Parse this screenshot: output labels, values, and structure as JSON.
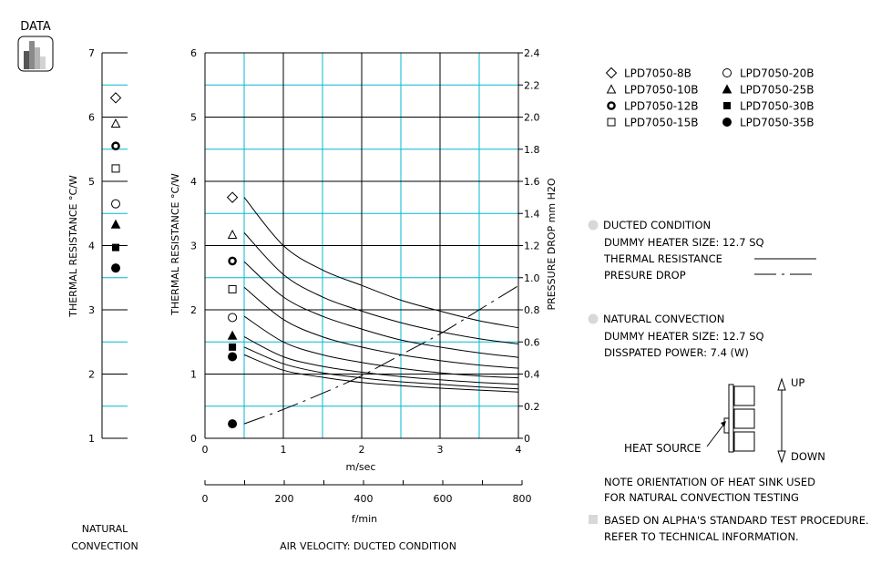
{
  "badge": {
    "label": "DATA"
  },
  "colors": {
    "grid_cyan": "#00b8d4",
    "ink": "#000000",
    "bullet_gray": "#d8d8d8",
    "badge_gray": "#a8a8a8"
  },
  "legend": {
    "items": [
      {
        "label": "LPD7050-8B",
        "marker": "diamond-open"
      },
      {
        "label": "LPD7050-10B",
        "marker": "triangle-open"
      },
      {
        "label": "LPD7050-12B",
        "marker": "circle-bold-ring"
      },
      {
        "label": "LPD7050-15B",
        "marker": "square-open"
      },
      {
        "label": "LPD7050-20B",
        "marker": "circle-open"
      },
      {
        "label": "LPD7050-25B",
        "marker": "triangle-filled"
      },
      {
        "label": "LPD7050-30B",
        "marker": "square-filled"
      },
      {
        "label": "LPD7050-35B",
        "marker": "circle-filled"
      }
    ]
  },
  "notes": {
    "ducted_title": "DUCTED CONDITION",
    "ducted_heater": "DUMMY HEATER SIZE: 12.7 SQ",
    "ducted_thermal": "THERMAL RESISTANCE",
    "ducted_pressure": "PRESURE DROP",
    "natural_title": "NATURAL CONVECTION",
    "natural_heater": "DUMMY HEATER SIZE: 12.7 SQ",
    "natural_power": "DISSPATED POWER:  7.4 (W)",
    "up": "UP",
    "down": "DOWN",
    "heat_source": "HEAT SOURCE",
    "orientation_1": "NOTE ORIENTATION OF HEAT SINK USED",
    "orientation_2": "FOR NATURAL CONVECTION TESTING",
    "alpha_1": "BASED ON ALPHA'S STANDARD TEST PROCEDURE.",
    "alpha_2": "REFER TO TECHNICAL INFORMATION."
  },
  "chart_data": [
    {
      "type": "scatter",
      "caption_1": "NATURAL",
      "caption_2": "CONVECTION",
      "ylabel": "THERMAL  RESISTANCE   °C/W",
      "ylim": [
        1,
        7
      ],
      "yticks": [
        "1",
        "2",
        "3",
        "4",
        "5",
        "6",
        "7"
      ],
      "grid": true,
      "series": [
        {
          "name": "LPD7050-8B",
          "marker": "diamond-open",
          "value": 6.3
        },
        {
          "name": "LPD7050-10B",
          "marker": "triangle-open",
          "value": 5.9
        },
        {
          "name": "LPD7050-12B",
          "marker": "circle-bold-ring",
          "value": 5.55
        },
        {
          "name": "LPD7050-15B",
          "marker": "square-open",
          "value": 5.2
        },
        {
          "name": "LPD7050-20B",
          "marker": "circle-open",
          "value": 4.65
        },
        {
          "name": "LPD7050-25B",
          "marker": "triangle-filled",
          "value": 4.33
        },
        {
          "name": "LPD7050-30B",
          "marker": "square-filled",
          "value": 3.97
        },
        {
          "name": "LPD7050-35B",
          "marker": "circle-filled",
          "value": 3.65
        }
      ]
    },
    {
      "type": "line",
      "caption": "AIR VELOCITY:  DUCTED CONDITION",
      "xlabel": "m/sec",
      "xlabel2": "f/min",
      "ylabel": "THERMAL  RESISTANCE   °C/W",
      "ylabel2": "PRESSURE  DROP    mm H2O",
      "xlim": [
        0,
        4
      ],
      "ylim": [
        0,
        6
      ],
      "y2lim": [
        0,
        2.4
      ],
      "xticks": [
        "0",
        "1",
        "2",
        "3",
        "4"
      ],
      "x2ticks": [
        "0",
        "200",
        "400",
        "600",
        "800"
      ],
      "yticks": [
        "0",
        "1",
        "2",
        "3",
        "4",
        "5",
        "6"
      ],
      "y2ticks": [
        "0",
        "0.2",
        "0.4",
        "0.6",
        "0.8",
        "1.0",
        "1.2",
        "1.4",
        "1.6",
        "1.8",
        "2.0",
        "2.2",
        "2.4"
      ],
      "grid": true,
      "marker_x": 0.35,
      "series": [
        {
          "name": "LPD7050-8B",
          "marker": "diamond-open",
          "marker_y": 3.75,
          "x": [
            0.5,
            1.0,
            1.5,
            2.0,
            2.5,
            3.0,
            3.5,
            4.0
          ],
          "y": [
            3.75,
            3.0,
            2.62,
            2.38,
            2.15,
            1.98,
            1.83,
            1.72
          ]
        },
        {
          "name": "LPD7050-10B",
          "marker": "triangle-open",
          "marker_y": 3.17,
          "x": [
            0.5,
            1.0,
            1.5,
            2.0,
            2.5,
            3.0,
            3.5,
            4.0
          ],
          "y": [
            3.2,
            2.55,
            2.2,
            1.98,
            1.8,
            1.66,
            1.55,
            1.47
          ]
        },
        {
          "name": "LPD7050-12B",
          "marker": "circle-bold-ring",
          "marker_y": 2.76,
          "x": [
            0.5,
            1.0,
            1.5,
            2.0,
            2.5,
            3.0,
            3.5,
            4.0
          ],
          "y": [
            2.75,
            2.2,
            1.9,
            1.7,
            1.53,
            1.42,
            1.33,
            1.26
          ]
        },
        {
          "name": "LPD7050-15B",
          "marker": "square-open",
          "marker_y": 2.32,
          "x": [
            0.5,
            1.0,
            1.5,
            2.0,
            2.5,
            3.0,
            3.5,
            4.0
          ],
          "y": [
            2.35,
            1.85,
            1.58,
            1.42,
            1.3,
            1.21,
            1.14,
            1.09
          ]
        },
        {
          "name": "LPD7050-20B",
          "marker": "circle-open",
          "marker_y": 1.88,
          "x": [
            0.5,
            1.0,
            1.5,
            2.0,
            2.5,
            3.0,
            3.5,
            4.0
          ],
          "y": [
            1.9,
            1.5,
            1.3,
            1.18,
            1.09,
            1.02,
            0.97,
            0.94
          ]
        },
        {
          "name": "LPD7050-25B",
          "marker": "triangle-filled",
          "marker_y": 1.6,
          "x": [
            0.5,
            1.0,
            1.5,
            2.0,
            2.5,
            3.0,
            3.5,
            4.0
          ],
          "y": [
            1.58,
            1.27,
            1.12,
            1.03,
            0.96,
            0.91,
            0.87,
            0.84
          ]
        },
        {
          "name": "LPD7050-30B",
          "marker": "square-filled",
          "marker_y": 1.42,
          "x": [
            0.5,
            1.0,
            1.5,
            2.0,
            2.5,
            3.0,
            3.5,
            4.0
          ],
          "y": [
            1.42,
            1.16,
            1.02,
            0.94,
            0.88,
            0.84,
            0.8,
            0.77
          ]
        },
        {
          "name": "LPD7050-35B",
          "marker": "circle-filled",
          "marker_y": 1.27,
          "x": [
            0.5,
            1.0,
            1.5,
            2.0,
            2.5,
            3.0,
            3.5,
            4.0
          ],
          "y": [
            1.3,
            1.06,
            0.95,
            0.87,
            0.82,
            0.78,
            0.75,
            0.72
          ]
        }
      ],
      "pressure_drop": {
        "marker": "circle-filled",
        "marker_x": 0.35,
        "marker_y2": 0.09,
        "x": [
          0.5,
          1.0,
          1.5,
          2.0,
          2.5,
          3.0,
          3.5,
          4.0
        ],
        "y2": [
          0.09,
          0.18,
          0.28,
          0.39,
          0.52,
          0.65,
          0.8,
          0.95
        ]
      }
    }
  ]
}
